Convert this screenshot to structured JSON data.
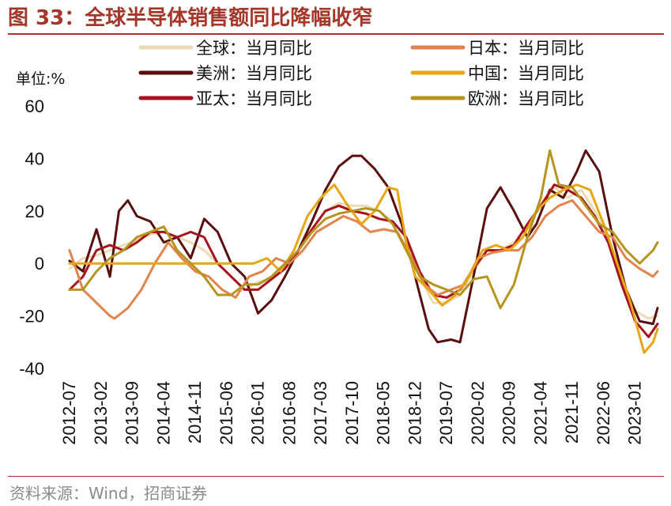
{
  "figure": {
    "title": "图 33：全球半导体销售额同比降幅收窄",
    "source": "资料来源：Wind，招商证券"
  },
  "chart_data": {
    "type": "line",
    "unit_label": "单位:%",
    "ylim": [
      -40,
      60
    ],
    "yticks": [
      60,
      40,
      20,
      0,
      -20,
      -40
    ],
    "ytick_labels": [
      "60",
      "40",
      "20",
      "0",
      "-20",
      "-40"
    ],
    "x_start": "2012-07",
    "x_end": "2023-06",
    "xtick_labels": [
      "2012-07",
      "2013-02",
      "2013-09",
      "2014-04",
      "2014-11",
      "2015-06",
      "2016-01",
      "2016-08",
      "2017-03",
      "2017-10",
      "2018-05",
      "2018-12",
      "2019-07",
      "2020-02",
      "2020-09",
      "2021-04",
      "2021-11",
      "2022-06",
      "2023-01"
    ],
    "legend_position": "top",
    "series": [
      {
        "name": "全球：当月同比",
        "color": "#ecdcb4",
        "width": 3,
        "points": [
          [
            "2012-07",
            -2
          ],
          [
            "2012-10",
            2
          ],
          [
            "2013-01",
            3
          ],
          [
            "2013-04",
            5
          ],
          [
            "2013-07",
            7
          ],
          [
            "2013-10",
            9
          ],
          [
            "2014-01",
            11
          ],
          [
            "2014-04",
            12
          ],
          [
            "2014-07",
            10
          ],
          [
            "2014-10",
            8
          ],
          [
            "2015-01",
            5
          ],
          [
            "2015-04",
            0
          ],
          [
            "2015-07",
            -5
          ],
          [
            "2015-10",
            -10
          ],
          [
            "2016-01",
            -7
          ],
          [
            "2016-04",
            -6
          ],
          [
            "2016-07",
            -1
          ],
          [
            "2016-10",
            5
          ],
          [
            "2017-01",
            13
          ],
          [
            "2017-04",
            20
          ],
          [
            "2017-07",
            23
          ],
          [
            "2017-10",
            22
          ],
          [
            "2018-01",
            22
          ],
          [
            "2018-04",
            20
          ],
          [
            "2018-07",
            16
          ],
          [
            "2018-10",
            10
          ],
          [
            "2019-01",
            -5
          ],
          [
            "2019-04",
            -15
          ],
          [
            "2019-07",
            -15
          ],
          [
            "2019-10",
            -12
          ],
          [
            "2020-01",
            -3
          ],
          [
            "2020-04",
            5
          ],
          [
            "2020-07",
            5
          ],
          [
            "2020-10",
            8
          ],
          [
            "2021-01",
            14
          ],
          [
            "2021-04",
            22
          ],
          [
            "2021-07",
            29
          ],
          [
            "2021-10",
            25
          ],
          [
            "2022-01",
            28
          ],
          [
            "2022-04",
            20
          ],
          [
            "2022-07",
            10
          ],
          [
            "2022-10",
            -5
          ],
          [
            "2023-01",
            -18
          ],
          [
            "2023-04",
            -21
          ],
          [
            "2023-06",
            -20
          ]
        ]
      },
      {
        "name": "美洲：当月同比",
        "color": "#5a0f0f",
        "width": 3,
        "points": [
          [
            "2012-07",
            1
          ],
          [
            "2012-10",
            -3
          ],
          [
            "2013-01",
            13
          ],
          [
            "2013-04",
            -5
          ],
          [
            "2013-06",
            20
          ],
          [
            "2013-08",
            24
          ],
          [
            "2013-10",
            18
          ],
          [
            "2014-01",
            16
          ],
          [
            "2014-04",
            8
          ],
          [
            "2014-07",
            10
          ],
          [
            "2014-10",
            2
          ],
          [
            "2015-01",
            17
          ],
          [
            "2015-04",
            12
          ],
          [
            "2015-07",
            0
          ],
          [
            "2015-10",
            -5
          ],
          [
            "2016-01",
            -19
          ],
          [
            "2016-04",
            -14
          ],
          [
            "2016-07",
            -5
          ],
          [
            "2016-10",
            5
          ],
          [
            "2017-01",
            16
          ],
          [
            "2017-04",
            28
          ],
          [
            "2017-07",
            37
          ],
          [
            "2017-10",
            41
          ],
          [
            "2017-12",
            41
          ],
          [
            "2018-03",
            36
          ],
          [
            "2018-06",
            29
          ],
          [
            "2018-09",
            15
          ],
          [
            "2018-12",
            -5
          ],
          [
            "2019-03",
            -25
          ],
          [
            "2019-05",
            -30
          ],
          [
            "2019-08",
            -29
          ],
          [
            "2019-10",
            -30
          ],
          [
            "2020-01",
            -5
          ],
          [
            "2020-04",
            21
          ],
          [
            "2020-07",
            29
          ],
          [
            "2020-10",
            20
          ],
          [
            "2021-01",
            10
          ],
          [
            "2021-03",
            15
          ],
          [
            "2021-06",
            28
          ],
          [
            "2021-09",
            25
          ],
          [
            "2021-12",
            35
          ],
          [
            "2022-02",
            43
          ],
          [
            "2022-05",
            35
          ],
          [
            "2022-08",
            10
          ],
          [
            "2022-11",
            -10
          ],
          [
            "2023-02",
            -22
          ],
          [
            "2023-05",
            -23
          ],
          [
            "2023-06",
            -17
          ]
        ]
      },
      {
        "name": "亚太：当月同比",
        "color": "#a8121c",
        "width": 3,
        "points": [
          [
            "2012-07",
            -10
          ],
          [
            "2012-10",
            -5
          ],
          [
            "2013-01",
            5
          ],
          [
            "2013-04",
            7
          ],
          [
            "2013-07",
            5
          ],
          [
            "2013-10",
            8
          ],
          [
            "2014-01",
            12
          ],
          [
            "2014-04",
            12
          ],
          [
            "2014-07",
            10
          ],
          [
            "2014-10",
            12
          ],
          [
            "2015-01",
            10
          ],
          [
            "2015-04",
            0
          ],
          [
            "2015-07",
            -5
          ],
          [
            "2015-10",
            -10
          ],
          [
            "2016-01",
            -10
          ],
          [
            "2016-04",
            -6
          ],
          [
            "2016-07",
            -2
          ],
          [
            "2016-10",
            5
          ],
          [
            "2017-01",
            13
          ],
          [
            "2017-04",
            20
          ],
          [
            "2017-07",
            22
          ],
          [
            "2017-10",
            20
          ],
          [
            "2018-01",
            19
          ],
          [
            "2018-04",
            17
          ],
          [
            "2018-07",
            16
          ],
          [
            "2018-10",
            10
          ],
          [
            "2019-01",
            -3
          ],
          [
            "2019-04",
            -12
          ],
          [
            "2019-07",
            -13
          ],
          [
            "2019-10",
            -10
          ],
          [
            "2020-01",
            -2
          ],
          [
            "2020-04",
            5
          ],
          [
            "2020-07",
            5
          ],
          [
            "2020-10",
            7
          ],
          [
            "2021-01",
            15
          ],
          [
            "2021-04",
            22
          ],
          [
            "2021-07",
            30
          ],
          [
            "2021-10",
            28
          ],
          [
            "2022-01",
            25
          ],
          [
            "2022-04",
            18
          ],
          [
            "2022-07",
            8
          ],
          [
            "2022-10",
            -8
          ],
          [
            "2023-01",
            -22
          ],
          [
            "2023-04",
            -28
          ],
          [
            "2023-06",
            -23
          ]
        ]
      },
      {
        "name": "日本：当月同比",
        "color": "#e0854e",
        "width": 3,
        "points": [
          [
            "2012-07",
            5
          ],
          [
            "2012-10",
            -10
          ],
          [
            "2013-01",
            -15
          ],
          [
            "2013-04",
            -20
          ],
          [
            "2013-05",
            -21
          ],
          [
            "2013-08",
            -17
          ],
          [
            "2013-11",
            -10
          ],
          [
            "2014-02",
            0
          ],
          [
            "2014-05",
            8
          ],
          [
            "2014-08",
            2
          ],
          [
            "2014-11",
            -3
          ],
          [
            "2015-02",
            -5
          ],
          [
            "2015-05",
            -10
          ],
          [
            "2015-08",
            -13
          ],
          [
            "2015-11",
            -5
          ],
          [
            "2016-02",
            -3
          ],
          [
            "2016-05",
            2
          ],
          [
            "2016-08",
            0
          ],
          [
            "2016-11",
            5
          ],
          [
            "2017-02",
            12
          ],
          [
            "2017-05",
            15
          ],
          [
            "2017-08",
            18
          ],
          [
            "2017-11",
            16
          ],
          [
            "2018-02",
            12
          ],
          [
            "2018-05",
            13
          ],
          [
            "2018-08",
            12
          ],
          [
            "2018-11",
            3
          ],
          [
            "2019-02",
            -8
          ],
          [
            "2019-05",
            -12
          ],
          [
            "2019-08",
            -10
          ],
          [
            "2019-11",
            -8
          ],
          [
            "2020-02",
            2
          ],
          [
            "2020-05",
            4
          ],
          [
            "2020-08",
            5
          ],
          [
            "2020-11",
            5
          ],
          [
            "2021-02",
            10
          ],
          [
            "2021-05",
            18
          ],
          [
            "2021-08",
            22
          ],
          [
            "2021-11",
            24
          ],
          [
            "2022-02",
            18
          ],
          [
            "2022-05",
            12
          ],
          [
            "2022-08",
            10
          ],
          [
            "2022-11",
            2
          ],
          [
            "2023-02",
            -2
          ],
          [
            "2023-05",
            -5
          ],
          [
            "2023-06",
            -3
          ]
        ]
      },
      {
        "name": "中国：当月同比",
        "color": "#e8a613",
        "width": 3,
        "points": [
          [
            "2012-07",
            0
          ],
          [
            "2013-01",
            0
          ],
          [
            "2014-01",
            0
          ],
          [
            "2015-01",
            0
          ],
          [
            "2015-12",
            0
          ],
          [
            "2016-03",
            2
          ],
          [
            "2016-06",
            -3
          ],
          [
            "2016-09",
            5
          ],
          [
            "2016-12",
            18
          ],
          [
            "2017-03",
            25
          ],
          [
            "2017-06",
            30
          ],
          [
            "2017-09",
            22
          ],
          [
            "2017-12",
            15
          ],
          [
            "2018-03",
            20
          ],
          [
            "2018-06",
            29
          ],
          [
            "2018-08",
            28
          ],
          [
            "2018-10",
            8
          ],
          [
            "2018-12",
            -5
          ],
          [
            "2019-03",
            -10
          ],
          [
            "2019-06",
            -16
          ],
          [
            "2019-09",
            -12
          ],
          [
            "2019-12",
            -5
          ],
          [
            "2020-03",
            5
          ],
          [
            "2020-06",
            7
          ],
          [
            "2020-09",
            5
          ],
          [
            "2020-12",
            10
          ],
          [
            "2021-03",
            20
          ],
          [
            "2021-06",
            25
          ],
          [
            "2021-09",
            28
          ],
          [
            "2021-12",
            30
          ],
          [
            "2022-03",
            28
          ],
          [
            "2022-06",
            15
          ],
          [
            "2022-09",
            0
          ],
          [
            "2022-12",
            -15
          ],
          [
            "2023-03",
            -34
          ],
          [
            "2023-05",
            -30
          ],
          [
            "2023-06",
            -25
          ]
        ]
      },
      {
        "name": "欧洲：当月同比",
        "color": "#b59520",
        "width": 3,
        "points": [
          [
            "2012-07",
            -10
          ],
          [
            "2012-10",
            -10
          ],
          [
            "2013-01",
            -3
          ],
          [
            "2013-04",
            2
          ],
          [
            "2013-07",
            5
          ],
          [
            "2013-10",
            10
          ],
          [
            "2014-01",
            12
          ],
          [
            "2014-04",
            14
          ],
          [
            "2014-07",
            5
          ],
          [
            "2014-10",
            0
          ],
          [
            "2015-01",
            -5
          ],
          [
            "2015-04",
            -12
          ],
          [
            "2015-07",
            -12
          ],
          [
            "2015-10",
            -8
          ],
          [
            "2016-01",
            -8
          ],
          [
            "2016-04",
            -5
          ],
          [
            "2016-07",
            0
          ],
          [
            "2016-10",
            5
          ],
          [
            "2017-01",
            12
          ],
          [
            "2017-04",
            17
          ],
          [
            "2017-07",
            19
          ],
          [
            "2017-10",
            20
          ],
          [
            "2018-01",
            21
          ],
          [
            "2018-04",
            20
          ],
          [
            "2018-07",
            15
          ],
          [
            "2018-10",
            5
          ],
          [
            "2019-01",
            -5
          ],
          [
            "2019-04",
            -8
          ],
          [
            "2019-07",
            -10
          ],
          [
            "2019-10",
            -12
          ],
          [
            "2020-01",
            -6
          ],
          [
            "2020-04",
            -5
          ],
          [
            "2020-07",
            -17
          ],
          [
            "2020-10",
            -8
          ],
          [
            "2021-01",
            10
          ],
          [
            "2021-04",
            25
          ],
          [
            "2021-06",
            43
          ],
          [
            "2021-08",
            30
          ],
          [
            "2021-11",
            29
          ],
          [
            "2022-02",
            22
          ],
          [
            "2022-05",
            15
          ],
          [
            "2022-08",
            12
          ],
          [
            "2022-11",
            5
          ],
          [
            "2023-02",
            0
          ],
          [
            "2023-05",
            5
          ],
          [
            "2023-06",
            8
          ]
        ]
      }
    ]
  }
}
